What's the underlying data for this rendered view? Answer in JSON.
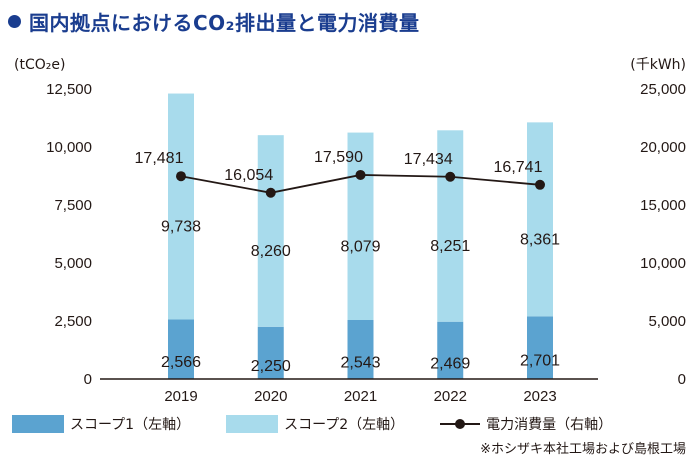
{
  "header": {
    "title": "国内拠点におけるCO₂排出量と電力消費量"
  },
  "units": {
    "left": "(tCO₂e)",
    "right": "(千kWh)"
  },
  "colors": {
    "scope1": "#5ba3d0",
    "scope2": "#a8dbec",
    "line": "#231815",
    "title": "#1a3d8f"
  },
  "legend": {
    "scope1": "スコープ1（左軸）",
    "scope2": "スコープ2（左軸）",
    "power": "電力消費量（右軸）"
  },
  "note": "※ホシザキ本社工場および島根工場",
  "chart_data": {
    "type": "bar",
    "stacked": true,
    "categories": [
      "2019",
      "2020",
      "2021",
      "2022",
      "2023"
    ],
    "series": [
      {
        "name": "スコープ1（左軸）",
        "axis": "left",
        "values": [
          2566,
          2250,
          2543,
          2469,
          2701
        ]
      },
      {
        "name": "スコープ2（左軸）",
        "axis": "left",
        "values": [
          9738,
          8260,
          8079,
          8251,
          8361
        ]
      },
      {
        "name": "電力消費量（右軸）",
        "axis": "right",
        "type": "line",
        "values": [
          17481,
          16054,
          17590,
          17434,
          16741
        ]
      }
    ],
    "y_left": {
      "label": "(tCO₂e)",
      "ylim": [
        0,
        12500
      ],
      "ticks": [
        "0",
        "2,500",
        "5,000",
        "7,500",
        "10,000",
        "12,500"
      ]
    },
    "y_right": {
      "label": "(千kWh)",
      "ylim": [
        0,
        25000
      ],
      "ticks": [
        "0",
        "5,000",
        "10,000",
        "15,000",
        "20,000",
        "25,000"
      ]
    },
    "grid": false,
    "legend_position": "bottom"
  }
}
